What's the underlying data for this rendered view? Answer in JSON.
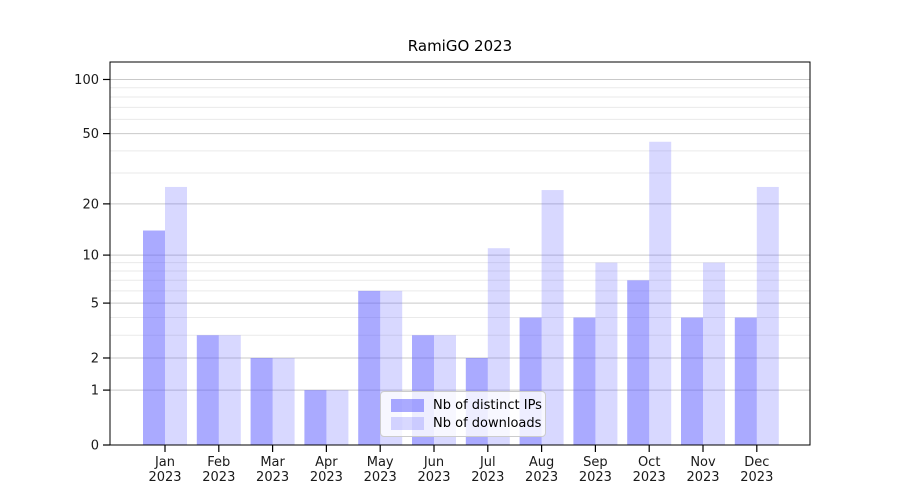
{
  "chart_data": {
    "type": "bar",
    "title": "RamiGO 2023",
    "x": {
      "months": [
        "Jan",
        "Feb",
        "Mar",
        "Apr",
        "May",
        "Jun",
        "Jul",
        "Aug",
        "Sep",
        "Oct",
        "Nov",
        "Dec"
      ],
      "year": "2023"
    },
    "series": [
      {
        "name": "Nb of distinct IPs",
        "color": "rgba(92,92,255,0.52)",
        "values": [
          14,
          3,
          2,
          1,
          6,
          3,
          2,
          4,
          4,
          7,
          4,
          4
        ]
      },
      {
        "name": "Nb of downloads",
        "color": "rgba(92,92,255,0.24)",
        "values": [
          25,
          3,
          2,
          1,
          6,
          3,
          11,
          24,
          9,
          45,
          9,
          25
        ]
      }
    ],
    "y_axis": {
      "scale": "log1p",
      "major_ticks": [
        0,
        1,
        2,
        5,
        10,
        20,
        50,
        100
      ],
      "minor_ticks": [
        3,
        4,
        6,
        7,
        8,
        9,
        30,
        40,
        60,
        70,
        80,
        90
      ],
      "top_value": 124
    },
    "legend": {
      "position": "lower center",
      "entries": [
        "Nb of distinct IPs",
        "Nb of downloads"
      ]
    },
    "grid": true,
    "colors": {
      "grid_major": "#c9c9c9",
      "grid_minor": "#eaeaea",
      "axis": "#000000",
      "tick_label": "#1a1a1a",
      "bar_base": "#5c5cff"
    }
  }
}
